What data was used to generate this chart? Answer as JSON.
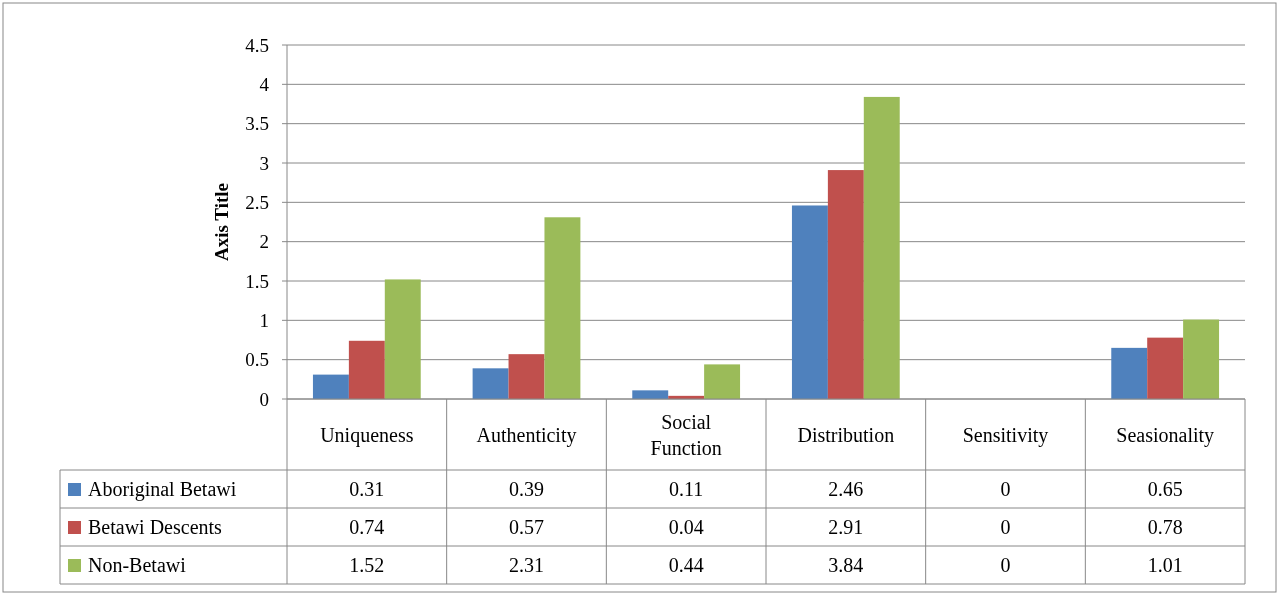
{
  "chart_data": {
    "type": "bar",
    "ylabel": "Axis Title",
    "categories": [
      "Uniqueness",
      "Authenticity",
      "Social Function",
      "Distribution",
      "Sensitivity",
      "Seasionality"
    ],
    "series": [
      {
        "name": "Aboriginal Betawi",
        "color": "#4f81bd",
        "values": [
          0.31,
          0.39,
          0.11,
          2.46,
          0,
          0.65
        ]
      },
      {
        "name": "Betawi Descents",
        "color": "#c0504d",
        "values": [
          0.74,
          0.57,
          0.04,
          2.91,
          0,
          0.78
        ]
      },
      {
        "name": "Non-Betawi",
        "color": "#9bbb59",
        "values": [
          1.52,
          2.31,
          0.44,
          3.84,
          0,
          1.01
        ]
      }
    ],
    "ylim": [
      0,
      4.5
    ],
    "yticks": [
      0,
      0.5,
      1,
      1.5,
      2,
      2.5,
      3,
      3.5,
      4,
      4.5
    ],
    "grid": "y",
    "legend": "bottom",
    "data_labels": true
  }
}
